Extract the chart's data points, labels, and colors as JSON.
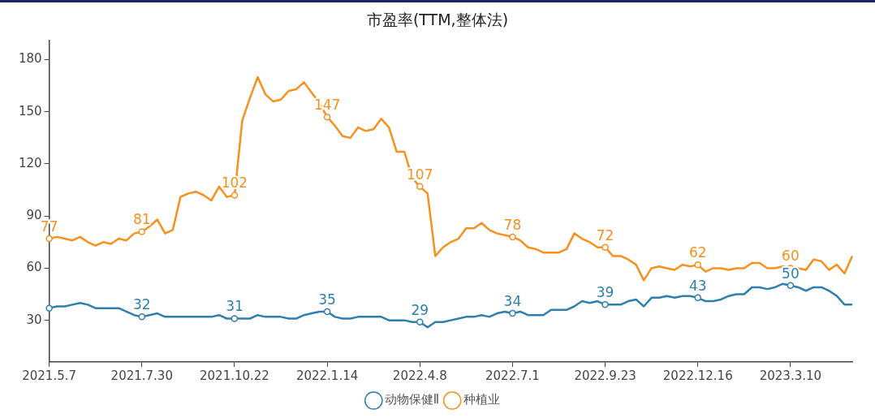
{
  "chart_data": {
    "type": "line",
    "title": "市盈率(TTM,整体法)",
    "categories": [
      "2021.5.7",
      null,
      null,
      null,
      null,
      null,
      null,
      null,
      null,
      null,
      null,
      null,
      "2021.7.30",
      null,
      null,
      null,
      null,
      null,
      null,
      null,
      null,
      null,
      null,
      null,
      "2021.10.22",
      null,
      null,
      null,
      null,
      null,
      null,
      null,
      null,
      null,
      null,
      null,
      "2022.1.14",
      null,
      null,
      null,
      null,
      null,
      null,
      null,
      null,
      null,
      null,
      null,
      "2022.4.8",
      null,
      null,
      null,
      null,
      null,
      null,
      null,
      null,
      null,
      null,
      null,
      "2022.7.1",
      null,
      null,
      null,
      null,
      null,
      null,
      null,
      null,
      null,
      null,
      null,
      "2022.9.23",
      null,
      null,
      null,
      null,
      null,
      null,
      null,
      null,
      null,
      null,
      null,
      "2022.12.16",
      null,
      null,
      null,
      null,
      null,
      null,
      null,
      null,
      null,
      null,
      null,
      "2023.3.10",
      null,
      null,
      null,
      null,
      null,
      null,
      null,
      null
    ],
    "series": [
      {
        "name": "动物保健Ⅱ",
        "color": "#2e7fae",
        "values": [
          37,
          38,
          38,
          39,
          40,
          39,
          37,
          37,
          37,
          37,
          35,
          33,
          32,
          33,
          34,
          32,
          32,
          32,
          32,
          32,
          32,
          32,
          33,
          31,
          31,
          31,
          31,
          33,
          32,
          32,
          32,
          31,
          31,
          33,
          34,
          35,
          35,
          32,
          31,
          31,
          32,
          32,
          32,
          32,
          30,
          30,
          30,
          29,
          29,
          26,
          29,
          29,
          30,
          31,
          32,
          32,
          33,
          32,
          34,
          35,
          34,
          35,
          33,
          33,
          33,
          36,
          36,
          36,
          38,
          41,
          40,
          41,
          39,
          39,
          39,
          41,
          42,
          38,
          43,
          43,
          44,
          43,
          44,
          44,
          43,
          41,
          41,
          42,
          44,
          45,
          45,
          49,
          49,
          48,
          49,
          51,
          50,
          49,
          47,
          49,
          49,
          47,
          44,
          39,
          39
        ],
        "value_labels": [
          null,
          null,
          null,
          null,
          null,
          null,
          null,
          null,
          null,
          null,
          null,
          null,
          "32",
          null,
          null,
          null,
          null,
          null,
          null,
          null,
          null,
          null,
          null,
          null,
          "31",
          null,
          null,
          null,
          null,
          null,
          null,
          null,
          null,
          null,
          null,
          null,
          "35",
          null,
          null,
          null,
          null,
          null,
          null,
          null,
          null,
          null,
          null,
          null,
          "29",
          null,
          null,
          null,
          null,
          null,
          null,
          null,
          null,
          null,
          null,
          null,
          "34",
          null,
          null,
          null,
          null,
          null,
          null,
          null,
          null,
          null,
          null,
          null,
          "39",
          null,
          null,
          null,
          null,
          null,
          null,
          null,
          null,
          null,
          null,
          null,
          "43",
          null,
          null,
          null,
          null,
          null,
          null,
          null,
          null,
          null,
          null,
          null,
          "50",
          null,
          null,
          null,
          null,
          null,
          null,
          null,
          null
        ]
      },
      {
        "name": "种植业",
        "color": "#f7901e",
        "values": [
          77,
          78,
          77,
          76,
          78,
          75,
          73,
          75,
          74,
          77,
          76,
          80,
          81,
          84,
          88,
          80,
          82,
          101,
          103,
          104,
          102,
          99,
          107,
          101,
          102,
          145,
          158,
          170,
          160,
          156,
          157,
          162,
          163,
          167,
          161,
          155,
          147,
          142,
          136,
          135,
          141,
          139,
          140,
          146,
          141,
          127,
          127,
          112,
          107,
          103,
          67,
          72,
          75,
          77,
          83,
          83,
          86,
          82,
          80,
          79,
          78,
          76,
          72,
          71,
          69,
          69,
          69,
          71,
          80,
          77,
          75,
          72,
          72,
          67,
          67,
          65,
          62,
          53,
          60,
          61,
          60,
          59,
          62,
          61,
          62,
          58,
          60,
          60,
          59,
          60,
          60,
          63,
          63,
          60,
          60,
          61,
          60,
          60,
          59,
          65,
          64,
          59,
          62,
          57,
          67
        ],
        "value_labels": [
          "77",
          null,
          null,
          null,
          null,
          null,
          null,
          null,
          null,
          null,
          null,
          null,
          "81",
          null,
          null,
          null,
          null,
          null,
          null,
          null,
          null,
          null,
          null,
          null,
          "102",
          null,
          null,
          null,
          null,
          null,
          null,
          null,
          null,
          null,
          null,
          null,
          "147",
          null,
          null,
          null,
          null,
          null,
          null,
          null,
          null,
          null,
          null,
          null,
          "107",
          null,
          null,
          null,
          null,
          null,
          null,
          null,
          null,
          null,
          null,
          null,
          "78",
          null,
          null,
          null,
          null,
          null,
          null,
          null,
          null,
          null,
          null,
          null,
          "72",
          null,
          null,
          null,
          null,
          null,
          null,
          null,
          null,
          null,
          null,
          null,
          "62",
          null,
          null,
          null,
          null,
          null,
          null,
          null,
          null,
          null,
          null,
          null,
          "60",
          null,
          null,
          null,
          null,
          null,
          null,
          null,
          null
        ]
      }
    ],
    "ylim": [
      6,
      191
    ],
    "yticks": [
      30,
      60,
      90,
      120,
      150,
      180
    ],
    "grid": false,
    "legend": "bottom"
  }
}
